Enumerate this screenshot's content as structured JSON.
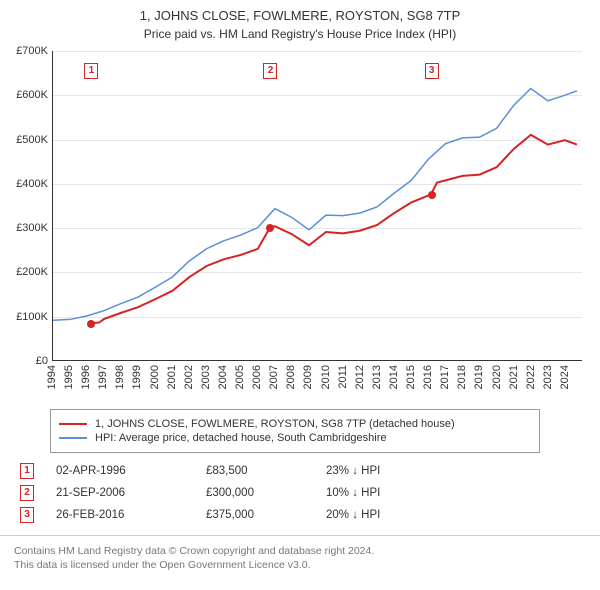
{
  "header": {
    "title": "1, JOHNS CLOSE, FOWLMERE, ROYSTON, SG8 7TP",
    "subtitle": "Price paid vs. HM Land Registry's House Price Index (HPI)"
  },
  "chart": {
    "type": "line",
    "background_color": "#ffffff",
    "grid_color": "#e6e6e6",
    "axis_color": "#333333",
    "label_fontsize": 11,
    "y": {
      "min": 0,
      "max": 700000,
      "ticks": [
        {
          "v": 0,
          "label": "£0"
        },
        {
          "v": 100000,
          "label": "£100K"
        },
        {
          "v": 200000,
          "label": "£200K"
        },
        {
          "v": 300000,
          "label": "£300K"
        },
        {
          "v": 400000,
          "label": "£400K"
        },
        {
          "v": 500000,
          "label": "£500K"
        },
        {
          "v": 600000,
          "label": "£600K"
        },
        {
          "v": 700000,
          "label": "£700K"
        }
      ]
    },
    "x": {
      "min": 1994,
      "max": 2025,
      "ticks": [
        1994,
        1995,
        1996,
        1997,
        1998,
        1999,
        2000,
        2001,
        2002,
        2003,
        2004,
        2005,
        2006,
        2007,
        2008,
        2009,
        2010,
        2011,
        2012,
        2013,
        2014,
        2015,
        2016,
        2017,
        2018,
        2019,
        2020,
        2021,
        2022,
        2023,
        2024
      ]
    },
    "series": [
      {
        "id": "hpi",
        "label": "HPI: Average price, detached house, South Cambridgeshire",
        "color": "#5b8fd6",
        "line_width": 1.5,
        "points": [
          [
            1994.0,
            90000
          ],
          [
            1995.0,
            92000
          ],
          [
            1996.0,
            100000
          ],
          [
            1997.0,
            112000
          ],
          [
            1998.0,
            128000
          ],
          [
            1999.0,
            143000
          ],
          [
            2000.0,
            165000
          ],
          [
            2001.0,
            188000
          ],
          [
            2002.0,
            225000
          ],
          [
            2003.0,
            252000
          ],
          [
            2004.0,
            270000
          ],
          [
            2005.0,
            283000
          ],
          [
            2006.0,
            300000
          ],
          [
            2007.0,
            343000
          ],
          [
            2008.0,
            323000
          ],
          [
            2009.0,
            295000
          ],
          [
            2010.0,
            328000
          ],
          [
            2011.0,
            327000
          ],
          [
            2012.0,
            333000
          ],
          [
            2013.0,
            347000
          ],
          [
            2014.0,
            378000
          ],
          [
            2015.0,
            407000
          ],
          [
            2016.0,
            455000
          ],
          [
            2017.0,
            490000
          ],
          [
            2018.0,
            503000
          ],
          [
            2019.0,
            505000
          ],
          [
            2020.0,
            525000
          ],
          [
            2021.0,
            577000
          ],
          [
            2022.0,
            615000
          ],
          [
            2023.0,
            587000
          ],
          [
            2024.0,
            600000
          ],
          [
            2024.7,
            610000
          ]
        ]
      },
      {
        "id": "property",
        "label": "1, JOHNS CLOSE, FOWLMERE, ROYSTON, SG8 7TP (detached house)",
        "color": "#d62323",
        "line_width": 2,
        "points": [
          [
            1996.25,
            83500
          ],
          [
            1996.7,
            85000
          ],
          [
            1997.0,
            93000
          ],
          [
            1998.0,
            107000
          ],
          [
            1999.0,
            120000
          ],
          [
            2000.0,
            138000
          ],
          [
            2001.0,
            157000
          ],
          [
            2002.0,
            188000
          ],
          [
            2003.0,
            213000
          ],
          [
            2004.0,
            228000
          ],
          [
            2005.0,
            238000
          ],
          [
            2006.0,
            252000
          ],
          [
            2006.72,
            300000
          ],
          [
            2007.0,
            303000
          ],
          [
            2008.0,
            285000
          ],
          [
            2009.0,
            260000
          ],
          [
            2010.0,
            290000
          ],
          [
            2011.0,
            287000
          ],
          [
            2012.0,
            293000
          ],
          [
            2013.0,
            306000
          ],
          [
            2014.0,
            333000
          ],
          [
            2015.0,
            357000
          ],
          [
            2016.15,
            375000
          ],
          [
            2016.5,
            402000
          ],
          [
            2017.0,
            407000
          ],
          [
            2018.0,
            417000
          ],
          [
            2019.0,
            420000
          ],
          [
            2020.0,
            437000
          ],
          [
            2021.0,
            478000
          ],
          [
            2022.0,
            510000
          ],
          [
            2023.0,
            488000
          ],
          [
            2024.0,
            498000
          ],
          [
            2024.7,
            488000
          ]
        ]
      }
    ],
    "sale_markers": [
      {
        "n": "1",
        "x": 1996.25,
        "y_box": 655000,
        "y_dot": 83500
      },
      {
        "n": "2",
        "x": 2006.72,
        "y_box": 655000,
        "y_dot": 300000
      },
      {
        "n": "3",
        "x": 2016.15,
        "y_box": 655000,
        "y_dot": 375000
      }
    ],
    "marker_border_color": "#d62323",
    "marker_text_color": "#d62323",
    "dot_color": "#d62323"
  },
  "legend": {
    "border_color": "#999999",
    "rows": [
      {
        "color": "#d62323",
        "label": "1, JOHNS CLOSE, FOWLMERE, ROYSTON, SG8 7TP (detached house)"
      },
      {
        "color": "#5b8fd6",
        "label": "HPI: Average price, detached house, South Cambridgeshire"
      }
    ]
  },
  "sales": [
    {
      "n": "1",
      "date": "02-APR-1996",
      "price": "£83,500",
      "delta": "23% ↓ HPI"
    },
    {
      "n": "2",
      "date": "21-SEP-2006",
      "price": "£300,000",
      "delta": "10% ↓ HPI"
    },
    {
      "n": "3",
      "date": "26-FEB-2016",
      "price": "£375,000",
      "delta": "20% ↓ HPI"
    }
  ],
  "footer": {
    "line1": "Contains HM Land Registry data © Crown copyright and database right 2024.",
    "line2": "This data is licensed under the Open Government Licence v3.0."
  }
}
